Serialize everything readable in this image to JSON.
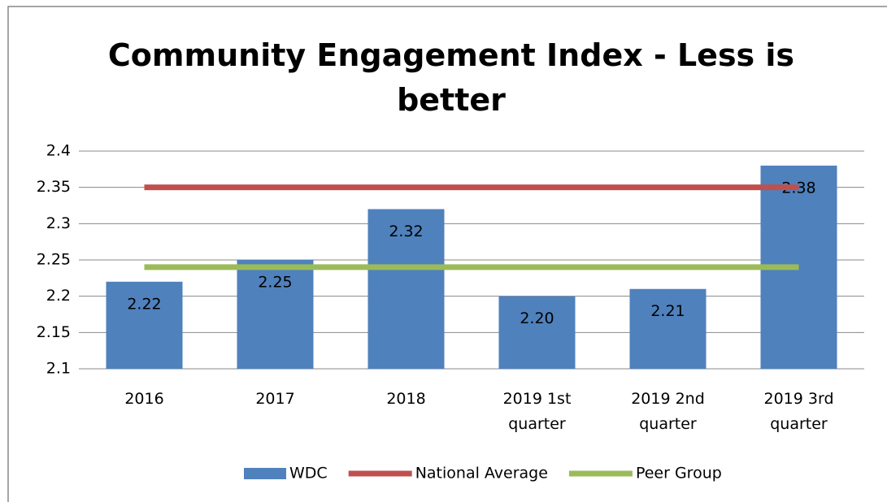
{
  "chart_data": {
    "type": "bar",
    "title": "Community Engagement Index - Less is better",
    "categories": [
      "2016",
      "2017",
      "2018",
      "2019 1st quarter",
      "2019 2nd quarter",
      "2019 3rd quarter"
    ],
    "series": [
      {
        "name": "WDC",
        "type": "bar",
        "color": "#4f81bd",
        "values": [
          2.22,
          2.25,
          2.32,
          2.2,
          2.21,
          2.38
        ],
        "value_labels": [
          "2.22",
          "2.25",
          "2.32",
          "2.20",
          "2.21",
          "2.38"
        ]
      },
      {
        "name": "National Average",
        "type": "line",
        "color": "#c0504d",
        "values": [
          2.35,
          2.35,
          2.35,
          2.35,
          2.35,
          2.35
        ]
      },
      {
        "name": "Peer Group",
        "type": "line",
        "color": "#9bbb59",
        "values": [
          2.24,
          2.24,
          2.24,
          2.24,
          2.24,
          2.24
        ]
      }
    ],
    "ylim": [
      2.1,
      2.4
    ],
    "yticks": [
      2.1,
      2.15,
      2.2,
      2.25,
      2.3,
      2.35,
      2.4
    ],
    "grid": true,
    "legend": "bottom"
  }
}
